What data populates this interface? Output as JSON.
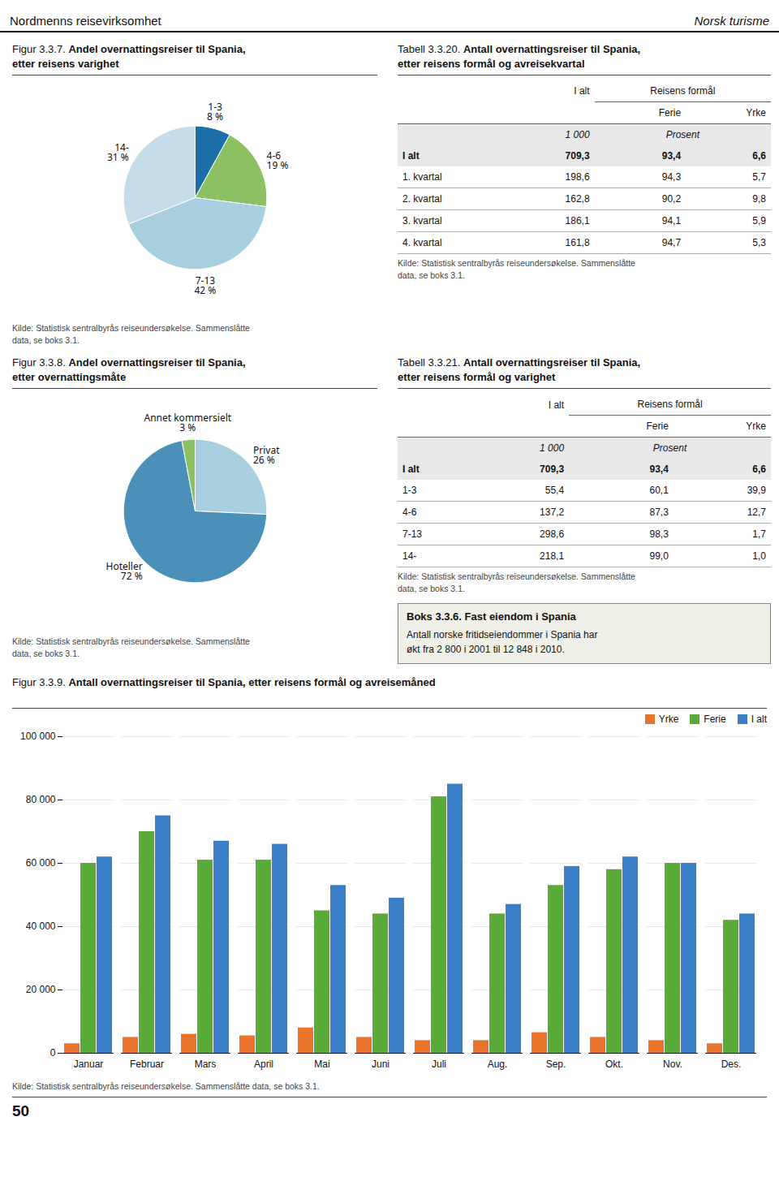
{
  "header_left": "Nordmenns reisevirksomhet",
  "header_right": "Norsk turisme",
  "page_number": "50",
  "chart_data": [
    {
      "type": "pie",
      "title": "Figur 3.3.7. Andel overnattingsreiser til Spania,\netter reisens varighet",
      "categories": [
        "1-3",
        "4-6",
        "7-13",
        "14-"
      ],
      "values": [
        8,
        19,
        42,
        31
      ],
      "value_labels": [
        "8 %",
        "19 %",
        "42 %",
        "31 %"
      ],
      "colors": [
        "#1b6ea8",
        "#8cc063",
        "#a8cfe0",
        "#c5dde8"
      ],
      "data_labels": true,
      "source": "Kilde: Statistisk sentralbyrås reiseundersøkelse. Sammenslåtte\ndata, se boks 3.1."
    },
    {
      "type": "table",
      "title": "Tabell 3.3.20. Antall overnattingsreiser til Spania,\netter reisens formål og avreisekvartal",
      "categories": [
        "I alt",
        "1. kvartal",
        "2. kvartal",
        "3. kvartal",
        "4. kvartal"
      ],
      "series": [
        {
          "name": "I alt",
          "values": [
            709.3,
            198.6,
            162.8,
            186.1,
            161.8
          ],
          "value_labels": [
            "709,3",
            "198,6",
            "162,8",
            "186,1",
            "161,8"
          ]
        },
        {
          "name": "Ferie",
          "values": [
            93.4,
            94.3,
            90.2,
            94.1,
            94.7
          ],
          "value_labels": [
            "93,4",
            "94,3",
            "90,2",
            "94,1",
            "94,7"
          ]
        },
        {
          "name": "Yrke",
          "values": [
            6.6,
            5.7,
            9.8,
            5.9,
            5.3
          ],
          "value_labels": [
            "6,6",
            "5,7",
            "9,8",
            "5,9",
            "5,3"
          ]
        }
      ],
      "annotations": [
        "Reisens formål",
        "1 000",
        "Prosent"
      ],
      "source": "Kilde: Statistisk sentralbyrås reiseundersøkelse. Sammenslåtte\ndata, se boks 3.1."
    },
    {
      "type": "pie",
      "title": "Figur 3.3.8. Andel overnattingsreiser til Spania,\netter overnattingsmåte",
      "categories": [
        "Privat",
        "Hoteller",
        "Annet kommersielt"
      ],
      "values": [
        26,
        72,
        3
      ],
      "value_labels": [
        "26 %",
        "72 %",
        "3 %"
      ],
      "colors": [
        "#a8cfe0",
        "#4a90b8",
        "#8cc063"
      ],
      "data_labels": true,
      "source": "Kilde: Statistisk sentralbyrås reiseundersøkelse. Sammenslåtte\ndata, se boks 3.1."
    },
    {
      "type": "table",
      "title": "Tabell 3.3.21. Antall overnattingsreiser til Spania,\netter reisens formål og varighet",
      "categories": [
        "I alt",
        "1-3",
        "4-6",
        "7-13",
        "14-"
      ],
      "series": [
        {
          "name": "I alt",
          "values": [
            709.3,
            55.4,
            137.2,
            298.6,
            218.1
          ],
          "value_labels": [
            "709,3",
            "55,4",
            "137,2",
            "298,6",
            "218,1"
          ]
        },
        {
          "name": "Ferie",
          "values": [
            93.4,
            60.1,
            87.3,
            98.3,
            99.0
          ],
          "value_labels": [
            "93,4",
            "60,1",
            "87,3",
            "98,3",
            "99,0"
          ]
        },
        {
          "name": "Yrke",
          "values": [
            6.6,
            39.9,
            12.7,
            1.7,
            1.0
          ],
          "value_labels": [
            "6,6",
            "39,9",
            "12,7",
            "1,7",
            "1,0"
          ]
        }
      ],
      "annotations": [
        "Reisens formål",
        "1 000",
        "Prosent"
      ],
      "source": "Kilde: Statistisk sentralbyrås reiseundersøkelse. Sammenslåtte\ndata, se boks 3.1."
    },
    {
      "type": "text",
      "title": "Boks 3.3.6. Fast eiendom i Spania",
      "annotations": [
        "Antall norske fritidseiendommer i Spania har\nøkt fra 2 800 i 2001 til 12 848 i 2010."
      ]
    },
    {
      "type": "bar",
      "title": "Figur 3.3.9. Antall overnattingsreiser til Spania, etter reisens formål og avreisemåned",
      "categories": [
        "Januar",
        "Februar",
        "Mars",
        "April",
        "Mai",
        "Juni",
        "Juli",
        "Aug.",
        "Sep.",
        "Okt.",
        "Nov.",
        "Des."
      ],
      "series": [
        {
          "name": "Yrke",
          "color": "#e8732a",
          "values": [
            3000,
            5000,
            6000,
            5500,
            8000,
            5000,
            4000,
            4000,
            6500,
            5000,
            4000,
            3000
          ]
        },
        {
          "name": "Ferie",
          "color": "#5aaa3a",
          "values": [
            60000,
            70000,
            61000,
            61000,
            45000,
            44000,
            81000,
            44000,
            53000,
            58000,
            60000,
            42000
          ]
        },
        {
          "name": "I alt",
          "color": "#3a7ec8",
          "values": [
            62000,
            75000,
            67000,
            66000,
            53000,
            49000,
            85000,
            47000,
            59000,
            62000,
            60000,
            44000
          ]
        }
      ],
      "ylim": [
        0,
        100000
      ],
      "yticks": [
        0,
        {
          "value": 20000,
          "label": "20 000"
        },
        {
          "value": 40000,
          "label": "40 000"
        },
        {
          "value": 60000,
          "label": "60 000"
        },
        {
          "value": 80000,
          "label": "80 000"
        },
        {
          "value": 100000,
          "label": "100 000"
        }
      ],
      "grid": true,
      "legend": "upper right",
      "source": "Kilde: Statistisk sentralbyrås reiseundersøkelse. Sammenslåtte data, se boks 3.1."
    }
  ]
}
